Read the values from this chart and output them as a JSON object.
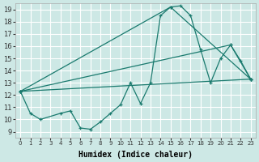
{
  "xlabel": "Humidex (Indice chaleur)",
  "bg_color": "#cde8e5",
  "grid_color": "#ffffff",
  "line_color": "#1a7a6e",
  "xlim": [
    -0.5,
    23.5
  ],
  "ylim": [
    8.5,
    19.5
  ],
  "xticks": [
    0,
    1,
    2,
    3,
    4,
    5,
    6,
    7,
    8,
    9,
    10,
    11,
    12,
    13,
    14,
    15,
    16,
    17,
    18,
    19,
    20,
    21,
    22,
    23
  ],
  "yticks": [
    9,
    10,
    11,
    12,
    13,
    14,
    15,
    16,
    17,
    18,
    19
  ],
  "main_series": {
    "x": [
      0,
      1,
      2,
      4,
      5,
      6,
      7,
      8,
      9,
      10,
      11,
      12,
      13,
      14,
      15,
      16,
      17,
      18,
      19,
      20,
      21,
      22,
      23
    ],
    "y": [
      12.3,
      10.5,
      10.0,
      10.5,
      10.7,
      9.3,
      9.2,
      9.8,
      10.5,
      11.2,
      13.0,
      11.3,
      13.0,
      18.5,
      19.2,
      19.3,
      18.5,
      15.7,
      13.0,
      15.0,
      16.1,
      14.8,
      13.3
    ]
  },
  "straight_lines": [
    {
      "x": [
        0,
        23
      ],
      "y": [
        12.3,
        13.3
      ]
    },
    {
      "x": [
        0,
        21,
        23
      ],
      "y": [
        12.3,
        16.1,
        13.3
      ]
    },
    {
      "x": [
        0,
        15,
        23
      ],
      "y": [
        12.3,
        19.2,
        13.3
      ]
    }
  ]
}
